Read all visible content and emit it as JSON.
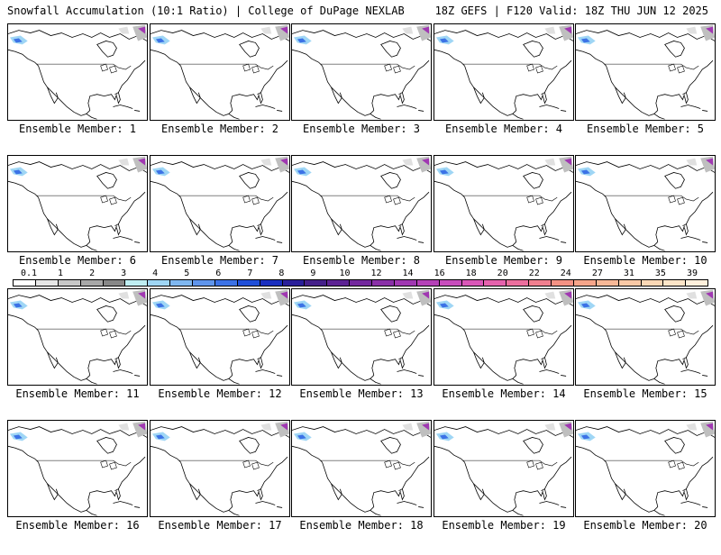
{
  "header": {
    "title": "Snowfall Accumulation (10:1 Ratio) | College of DuPage NEXLAB",
    "valid": "18Z GEFS | F120 Valid: 18Z THU JUN 12 2025"
  },
  "members": [
    {
      "label": "Ensemble Member: 1"
    },
    {
      "label": "Ensemble Member: 2"
    },
    {
      "label": "Ensemble Member: 3"
    },
    {
      "label": "Ensemble Member: 4"
    },
    {
      "label": "Ensemble Member: 5"
    },
    {
      "label": "Ensemble Member: 6"
    },
    {
      "label": "Ensemble Member: 7"
    },
    {
      "label": "Ensemble Member: 8"
    },
    {
      "label": "Ensemble Member: 9"
    },
    {
      "label": "Ensemble Member: 10"
    },
    {
      "label": "Ensemble Member: 11"
    },
    {
      "label": "Ensemble Member: 12"
    },
    {
      "label": "Ensemble Member: 13"
    },
    {
      "label": "Ensemble Member: 14"
    },
    {
      "label": "Ensemble Member: 15"
    },
    {
      "label": "Ensemble Member: 16"
    },
    {
      "label": "Ensemble Member: 17"
    },
    {
      "label": "Ensemble Member: 18"
    },
    {
      "label": "Ensemble Member: 19"
    },
    {
      "label": "Ensemble Member: 20"
    }
  ],
  "colorbar": {
    "labels": [
      "0.1",
      "1",
      "2",
      "3",
      "4",
      "5",
      "6",
      "7",
      "8",
      "9",
      "10",
      "12",
      "14",
      "16",
      "18",
      "20",
      "22",
      "24",
      "27",
      "31",
      "35",
      "39"
    ],
    "colors": [
      "#ffffff",
      "#e6e6e6",
      "#c8c8c8",
      "#a8a8a8",
      "#888888",
      "#bfeef2",
      "#9fd6f5",
      "#7fb7f0",
      "#5f95ec",
      "#3c72e6",
      "#1f4fd9",
      "#1a2fc0",
      "#2a1f9a",
      "#45208a",
      "#5d2394",
      "#73289e",
      "#8a30a8",
      "#a038b2",
      "#b542b8",
      "#c84dbd",
      "#d957b8",
      "#e562ad",
      "#ec6f9e",
      "#f07f8f",
      "#f49284",
      "#f6a58a",
      "#f8b897",
      "#fac9a6",
      "#fcd8b6",
      "#fde5c8",
      "#fff0dc"
    ]
  }
}
